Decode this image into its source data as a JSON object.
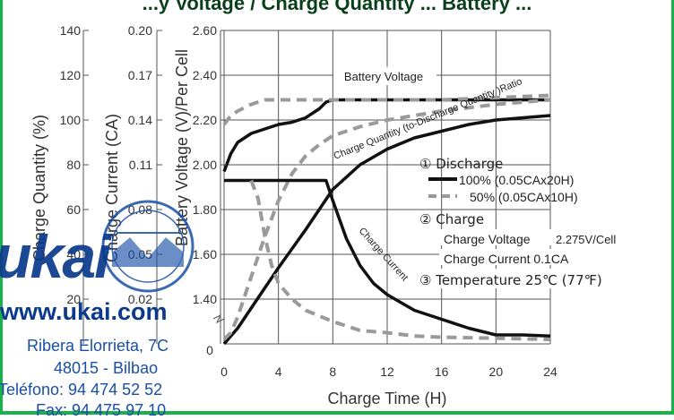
{
  "header": {
    "title": "...y Voltage / Charge Quantity ... Battery ...",
    "accent_color": "#19b24a"
  },
  "watermark": {
    "logo_text": "ukai",
    "url": "www.ukai.com",
    "address_line1": "Ribera Elorrieta, 7C",
    "address_line2": "48015 - Bilbao",
    "phone": "Teléfono: 94 474 52 52",
    "fax": "Fax: 94 475 97 10"
  },
  "chart_data": {
    "type": "line",
    "xlabel": "Charge Time (H)",
    "x_ticks": [
      "0",
      "4",
      "8",
      "12",
      "16",
      "20",
      "24"
    ],
    "xlim": [
      0,
      24
    ],
    "grid": true,
    "axes": [
      {
        "label": "Charge Quantity (%)",
        "ticks": [
          "140",
          "120",
          "100",
          "80",
          "60",
          "40",
          "20"
        ]
      },
      {
        "label": "Charge Current (CA)",
        "ticks": [
          "0.20",
          "0.17",
          "0.14",
          "0.11",
          "0.08",
          "0.05",
          "0.02"
        ]
      },
      {
        "label": "Battery Voltage (V)/Per Cell",
        "ticks": [
          "2.60",
          "2.40",
          "2.20",
          "2.00",
          "1.80",
          "1.60",
          "1.40"
        ],
        "ylim": [
          1.2,
          2.6
        ]
      }
    ],
    "zero_label": "0",
    "curve_labels": [
      "Battery Voltage",
      "Charge Quantity (to-Discharge Quantity )Ratio",
      "Charge Current"
    ],
    "legend": {
      "discharge_title": "① Discharge",
      "series_100": "100% (0.05CAx20H)",
      "series_50": "50% (0.05CAx10H)",
      "charge_title": "② Charge",
      "charge_voltage_label": "Charge Voltage",
      "charge_voltage_value": "2.275V/Cell",
      "charge_current": "Charge Current 0.1CA",
      "temperature": "③ Temperature 25℃ (77℉)"
    },
    "series": [
      {
        "name": "100% (0.05CAx20H)",
        "style": "solid",
        "group": "voltage",
        "x": [
          0,
          0.5,
          1,
          2,
          3,
          4,
          5,
          6,
          7,
          7.5,
          8,
          12,
          16,
          20,
          24
        ],
        "y": [
          1.97,
          2.05,
          2.1,
          2.14,
          2.16,
          2.18,
          2.19,
          2.21,
          2.25,
          2.28,
          2.29,
          2.29,
          2.29,
          2.29,
          2.29
        ]
      },
      {
        "name": "50% (0.05CAx10H)",
        "style": "dashed",
        "group": "voltage",
        "x": [
          0,
          0.5,
          1,
          2,
          3,
          4,
          8,
          12,
          16,
          20,
          24
        ],
        "y": [
          2.18,
          2.22,
          2.24,
          2.27,
          2.29,
          2.29,
          2.29,
          2.29,
          2.29,
          2.3,
          2.31
        ]
      },
      {
        "name": "100% (0.05CAx20H)",
        "style": "solid",
        "group": "quantity",
        "x": [
          0,
          1,
          2,
          4,
          6,
          8,
          10,
          12,
          14,
          16,
          18,
          20,
          22,
          24
        ],
        "y": [
          1.2,
          1.27,
          1.36,
          1.54,
          1.71,
          1.89,
          2.0,
          2.07,
          2.12,
          2.15,
          2.18,
          2.2,
          2.21,
          2.22
        ]
      },
      {
        "name": "50% (0.05CAx10H)",
        "style": "dashed",
        "group": "quantity",
        "x": [
          0,
          0.5,
          1,
          2,
          3,
          4,
          5,
          6,
          7,
          8,
          10,
          12,
          16,
          20,
          24
        ],
        "y": [
          1.22,
          1.25,
          1.32,
          1.5,
          1.68,
          1.84,
          1.96,
          2.04,
          2.09,
          2.13,
          2.17,
          2.2,
          2.24,
          2.27,
          2.29
        ]
      },
      {
        "name": "100% (0.05CAx20H)",
        "style": "solid",
        "group": "current",
        "x": [
          0,
          7.5,
          8,
          9,
          10,
          11,
          12,
          14,
          16,
          18,
          20,
          22,
          24
        ],
        "y": [
          1.93,
          1.93,
          1.84,
          1.67,
          1.55,
          1.47,
          1.42,
          1.35,
          1.31,
          1.27,
          1.24,
          1.24,
          1.235
        ]
      },
      {
        "name": "50% (0.05CAx10H)",
        "style": "dashed",
        "group": "current",
        "x": [
          2,
          2.5,
          3,
          3.5,
          4,
          5,
          6,
          8,
          10,
          12,
          14,
          16,
          20,
          24
        ],
        "y": [
          1.93,
          1.85,
          1.68,
          1.55,
          1.47,
          1.4,
          1.35,
          1.3,
          1.26,
          1.25,
          1.235,
          1.23,
          1.225,
          1.22
        ]
      }
    ]
  }
}
